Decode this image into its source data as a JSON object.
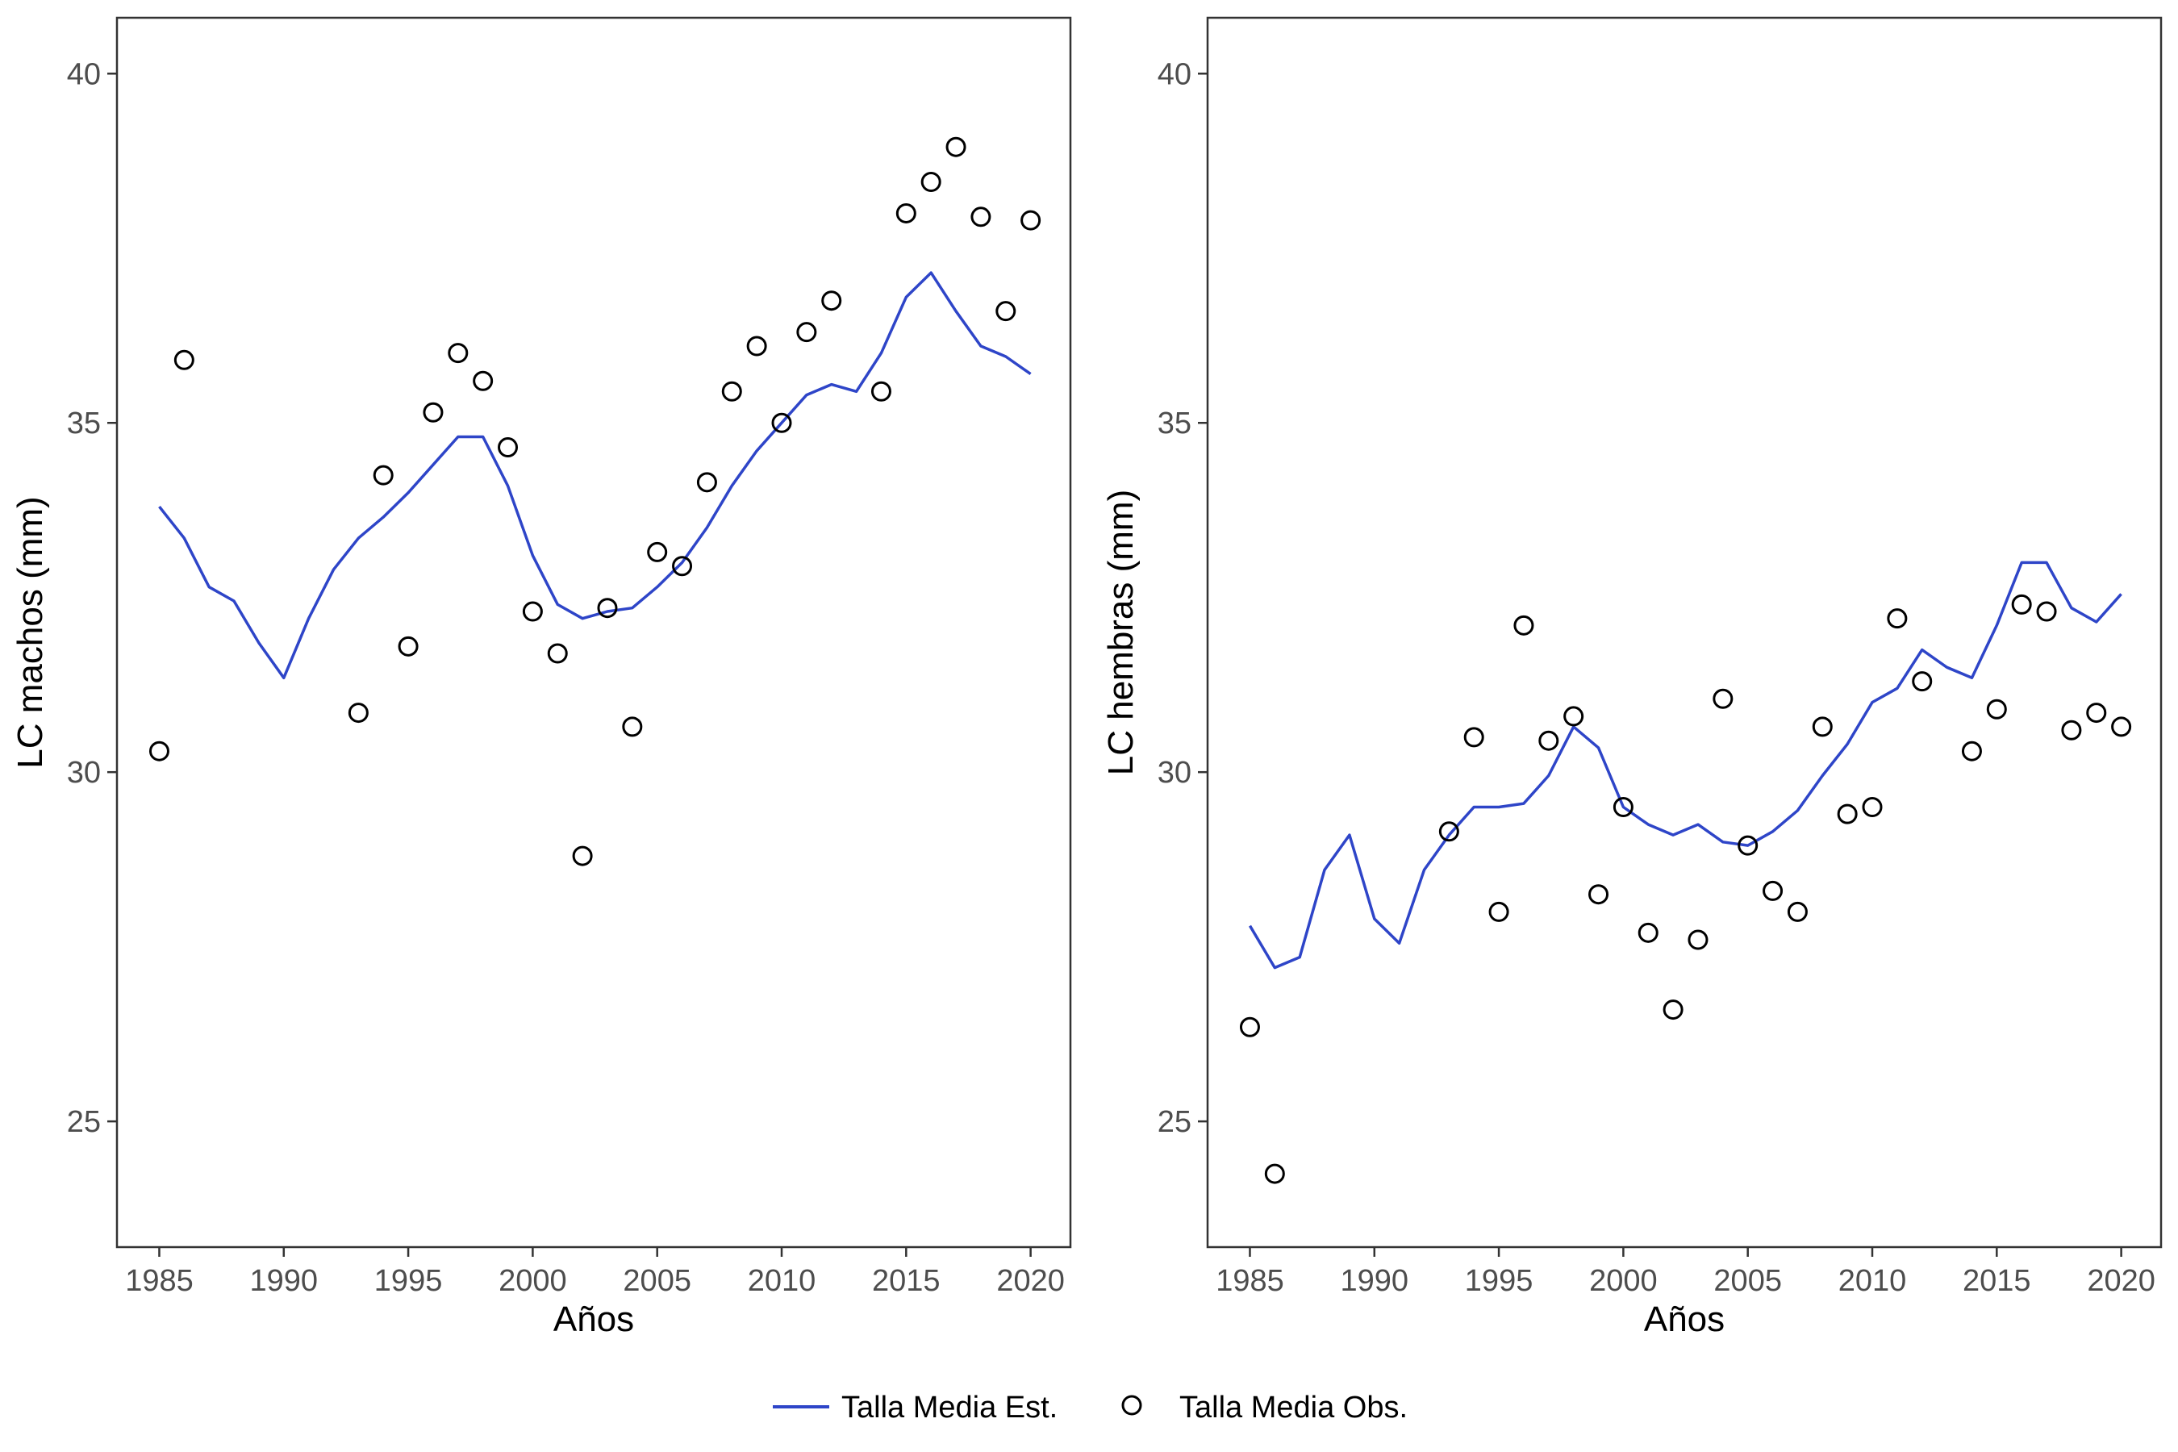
{
  "colors": {
    "estimated_line": "#2E45C8",
    "observed_point": "#000000",
    "frame": "#333333",
    "tick_label": "#4d4d4d"
  },
  "legend": {
    "position": "bottom",
    "estimated_label": "Talla Media Est.",
    "observed_label": "Talla Media Obs."
  },
  "chart_data": [
    {
      "type": "line",
      "xlabel": "Años",
      "ylabel": "LC machos (mm)",
      "xlim": [
        1983.3,
        2021.6
      ],
      "ylim": [
        23.2,
        40.8
      ],
      "xticks": [
        1985,
        1990,
        1995,
        2000,
        2005,
        2010,
        2015,
        2020
      ],
      "yticks": [
        25,
        30,
        35,
        40
      ],
      "grid": false,
      "estimated": {
        "x": [
          1985,
          1986,
          1987,
          1988,
          1989,
          1990,
          1991,
          1992,
          1993,
          1994,
          1995,
          1996,
          1997,
          1998,
          1999,
          2000,
          2001,
          2002,
          2003,
          2004,
          2005,
          2006,
          2007,
          2008,
          2009,
          2010,
          2011,
          2012,
          2013,
          2014,
          2015,
          2016,
          2017,
          2018,
          2019,
          2020
        ],
        "y": [
          33.8,
          33.35,
          32.65,
          32.45,
          31.85,
          31.35,
          32.2,
          32.9,
          33.35,
          33.65,
          34.0,
          34.4,
          34.8,
          34.8,
          34.1,
          33.1,
          32.4,
          32.2,
          32.3,
          32.35,
          32.65,
          33.0,
          33.5,
          34.1,
          34.6,
          35.0,
          35.4,
          35.55,
          35.45,
          36.0,
          36.8,
          37.15,
          36.6,
          36.1,
          35.95,
          35.7
        ]
      },
      "observed": {
        "x": [
          1985,
          1986,
          1993,
          1994,
          1995,
          1996,
          1997,
          1998,
          1999,
          2000,
          2001,
          2002,
          2003,
          2004,
          2005,
          2006,
          2007,
          2008,
          2009,
          2010,
          2011,
          2012,
          2014,
          2015,
          2016,
          2017,
          2018,
          2019,
          2020
        ],
        "y": [
          30.3,
          35.9,
          30.85,
          34.25,
          31.8,
          35.15,
          36.0,
          35.6,
          34.65,
          32.3,
          31.7,
          28.8,
          32.35,
          30.65,
          33.15,
          32.95,
          34.15,
          35.45,
          36.1,
          35.0,
          36.3,
          36.75,
          35.45,
          38.0,
          38.45,
          38.95,
          37.95,
          36.6,
          37.9
        ]
      }
    },
    {
      "type": "line",
      "xlabel": "Años",
      "ylabel": "LC hembras (mm)",
      "xlim": [
        1983.3,
        2021.6
      ],
      "ylim": [
        23.2,
        40.8
      ],
      "xticks": [
        1985,
        1990,
        1995,
        2000,
        2005,
        2010,
        2015,
        2020
      ],
      "yticks": [
        25,
        30,
        35,
        40
      ],
      "grid": false,
      "estimated": {
        "x": [
          1985,
          1986,
          1987,
          1988,
          1989,
          1990,
          1991,
          1992,
          1993,
          1994,
          1995,
          1996,
          1997,
          1998,
          1999,
          2000,
          2001,
          2002,
          2003,
          2004,
          2005,
          2006,
          2007,
          2008,
          2009,
          2010,
          2011,
          2012,
          2013,
          2014,
          2015,
          2016,
          2017,
          2018,
          2019,
          2020
        ],
        "y": [
          27.8,
          27.2,
          27.35,
          28.6,
          29.1,
          27.9,
          27.55,
          28.6,
          29.1,
          29.5,
          29.5,
          29.55,
          29.95,
          30.65,
          30.35,
          29.5,
          29.25,
          29.1,
          29.25,
          29.0,
          28.95,
          29.15,
          29.45,
          29.95,
          30.4,
          31.0,
          31.2,
          31.75,
          31.5,
          31.35,
          32.1,
          33.0,
          33.0,
          32.35,
          32.15,
          32.55
        ]
      },
      "observed": {
        "x": [
          1985,
          1986,
          1993,
          1994,
          1995,
          1996,
          1997,
          1998,
          1999,
          2000,
          2001,
          2002,
          2003,
          2004,
          2005,
          2006,
          2007,
          2008,
          2009,
          2010,
          2011,
          2012,
          2014,
          2015,
          2016,
          2017,
          2018,
          2019,
          2020
        ],
        "y": [
          26.35,
          24.25,
          29.15,
          30.5,
          28.0,
          32.1,
          30.45,
          30.8,
          28.25,
          29.5,
          27.7,
          26.6,
          27.6,
          31.05,
          28.95,
          28.3,
          28.0,
          30.65,
          29.4,
          29.5,
          32.2,
          31.3,
          30.3,
          30.9,
          32.4,
          32.3,
          30.6,
          30.85,
          30.65
        ]
      }
    }
  ]
}
